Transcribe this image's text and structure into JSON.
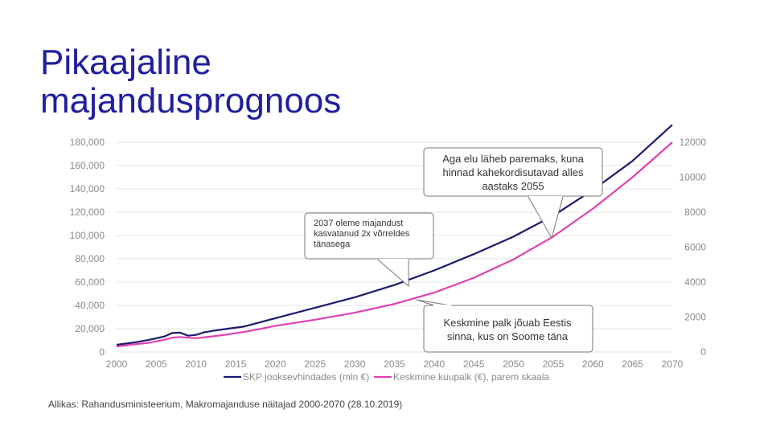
{
  "slide": {
    "title_line1": "Pikaajaline",
    "title_line2": "majandusprognoos",
    "source": "Allikas: Rahandusministeerium, Makromajanduse näitajad 2000-2070 (28.10.2019)"
  },
  "colors": {
    "title": "#1f1f9e",
    "gdp": "#1a1a6e",
    "wage": "#e040b0",
    "grid": "#e6e6e6"
  },
  "chart_data": {
    "type": "line",
    "x": [
      2000,
      2002,
      2004,
      2006,
      2007,
      2008,
      2009,
      2010,
      2011,
      2012,
      2014,
      2016,
      2018,
      2020,
      2025,
      2030,
      2035,
      2040,
      2045,
      2050,
      2055,
      2060,
      2065,
      2070
    ],
    "series": [
      {
        "name": "SKP jooksevhindades (mln €)",
        "axis": "left",
        "values": [
          6200,
          8000,
          10300,
          13300,
          16300,
          16600,
          14000,
          14700,
          16900,
          18100,
          20000,
          21800,
          25400,
          29000,
          38000,
          47000,
          57500,
          70000,
          84000,
          99000,
          117000,
          139000,
          164000,
          195000
        ]
      },
      {
        "name": "Keskmine kuupalk (€), parem skaala",
        "axis": "right",
        "values": [
          315,
          430,
          520,
          700,
          820,
          860,
          820,
          790,
          840,
          890,
          1005,
          1145,
          1310,
          1500,
          1850,
          2250,
          2750,
          3400,
          4250,
          5300,
          6600,
          8200,
          10000,
          12000
        ]
      }
    ],
    "xlim": [
      2000,
      2070
    ],
    "ylim_left": [
      0,
      180000
    ],
    "ylim_right": [
      0,
      12000
    ],
    "x_ticks": [
      "2000",
      "2005",
      "2010",
      "2015",
      "2020",
      "2025",
      "2030",
      "2035",
      "2040",
      "2045",
      "2050",
      "2055",
      "2060",
      "2065",
      "2070"
    ],
    "y_ticks_left": [
      "0",
      "20,000",
      "40,000",
      "60,000",
      "80,000",
      "100,000",
      "120,000",
      "140,000",
      "160,000",
      "180,000"
    ],
    "y_ticks_right": [
      "0",
      "2000",
      "4000",
      "6000",
      "8000",
      "10000",
      "12000"
    ],
    "grid": true,
    "legend_position": "bottom",
    "annotations": [
      {
        "lines": [
          "Aga elu läheb paremaks, kuna",
          "hinnad kahekordisutavad alles",
          "aastaks 2055"
        ],
        "points_to_year": 2055
      },
      {
        "lines": [
          "2037 oleme majandust",
          "kasvatanud 2x võrreldes",
          "tänasega"
        ],
        "points_to_year": 2037
      },
      {
        "lines": [
          "Keskmine palk jõuab Eestis",
          "sinna, kus on Soome täna"
        ],
        "points_to_year": 2037
      }
    ]
  }
}
